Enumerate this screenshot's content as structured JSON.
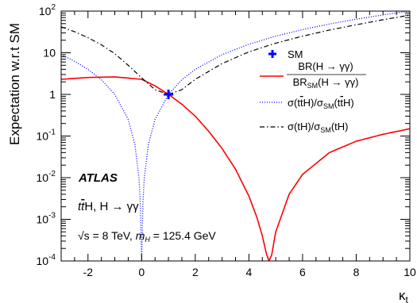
{
  "chart_data": {
    "type": "line",
    "title": "",
    "xlabel": "κt",
    "ylabel": "Expectation w.r.t SM",
    "xlim": [
      -3,
      10
    ],
    "ylim": [
      0.0001,
      100
    ],
    "yscale": "log",
    "x_ticks": [
      "-2",
      "0",
      "2",
      "4",
      "6",
      "8",
      "10"
    ],
    "y_ticks": [
      {
        "base": "10",
        "exp": "2"
      },
      {
        "base": "10",
        "exp": ""
      },
      {
        "base": "1",
        "exp": ""
      },
      {
        "base": "10",
        "exp": "-1"
      },
      {
        "base": "10",
        "exp": "-2"
      },
      {
        "base": "10",
        "exp": "-3"
      },
      {
        "base": "10",
        "exp": "-4"
      }
    ],
    "series": [
      {
        "name": "BR(H → γγ) / BR_SM(H → γγ)",
        "legend_num": "BR(H → γγ)",
        "legend_den_main": "BR",
        "legend_den_sub": "SM",
        "legend_den_rest": "(H → γγ)",
        "color": "#ff0000",
        "style": "solid",
        "x": [
          -3,
          -2,
          -1,
          0,
          0.5,
          1,
          1.5,
          2,
          2.5,
          3,
          3.5,
          4,
          4.3,
          4.5,
          4.65,
          4.75,
          4.85,
          5,
          5.5,
          6,
          7,
          8,
          9,
          10
        ],
        "y": [
          2.3,
          2.55,
          2.63,
          2.3,
          1.6,
          1.0,
          0.58,
          0.3,
          0.13,
          0.05,
          0.016,
          0.0036,
          0.0011,
          0.0004,
          0.00015,
          0.0001,
          0.00014,
          0.0005,
          0.004,
          0.012,
          0.04,
          0.075,
          0.11,
          0.15
        ]
      },
      {
        "name": "σ(ttH)/σ_SM(ttH)",
        "legend_main": "σ(t",
        "legend_bar": "t",
        "legend_mid": "H)/σ",
        "legend_sub": "SM",
        "legend_end_a": "(t",
        "legend_end_bar": "t",
        "legend_end_b": "H)",
        "color": "#0000ff",
        "style": "dotted",
        "x": [
          -3,
          -2.5,
          -2,
          -1.5,
          -1,
          -0.5,
          -0.25,
          -0.1,
          -0.05,
          -0.02,
          0,
          0.02,
          0.05,
          0.1,
          0.25,
          0.5,
          1,
          1.5,
          2,
          3,
          4,
          5,
          6,
          7,
          8,
          9,
          10
        ],
        "y": [
          9,
          6.25,
          4,
          2.25,
          1,
          0.25,
          0.0625,
          0.01,
          0.0025,
          0.0004,
          0.0001,
          0.0004,
          0.0025,
          0.01,
          0.0625,
          0.25,
          1,
          2.25,
          4,
          9,
          16,
          25,
          36,
          49,
          64,
          81,
          100
        ]
      },
      {
        "name": "σ(tH)/σ_SM(tH)",
        "legend_main": "σ(tH)/σ",
        "legend_sub": "SM",
        "legend_end": "(tH)",
        "color": "#000000",
        "style": "dashdot",
        "x": [
          -3,
          -2.5,
          -2,
          -1.5,
          -1,
          -0.5,
          0,
          0.5,
          1,
          1.5,
          2,
          3,
          4,
          5,
          6,
          7,
          8,
          9,
          10
        ],
        "y": [
          42,
          32,
          23,
          15.5,
          9.5,
          5,
          2.5,
          1.3,
          1.0,
          1.3,
          2.3,
          5.5,
          10.5,
          17,
          25,
          35,
          47,
          62,
          80
        ]
      }
    ],
    "sm_point": {
      "x": 1,
      "y": 1,
      "name": "SM",
      "color": "#0000ff"
    },
    "legend_placement": "top-right",
    "annotations": {
      "experiment": "ATLAS",
      "process_a": "t",
      "process_bar": "t",
      "process_b": "H, H → γγ",
      "energy_sqrt": "√s",
      "energy_rest": " = 8 TeV, ",
      "mass_sym": "m",
      "mass_sub": "H",
      "mass_rest": " = 125.4 GeV"
    }
  }
}
